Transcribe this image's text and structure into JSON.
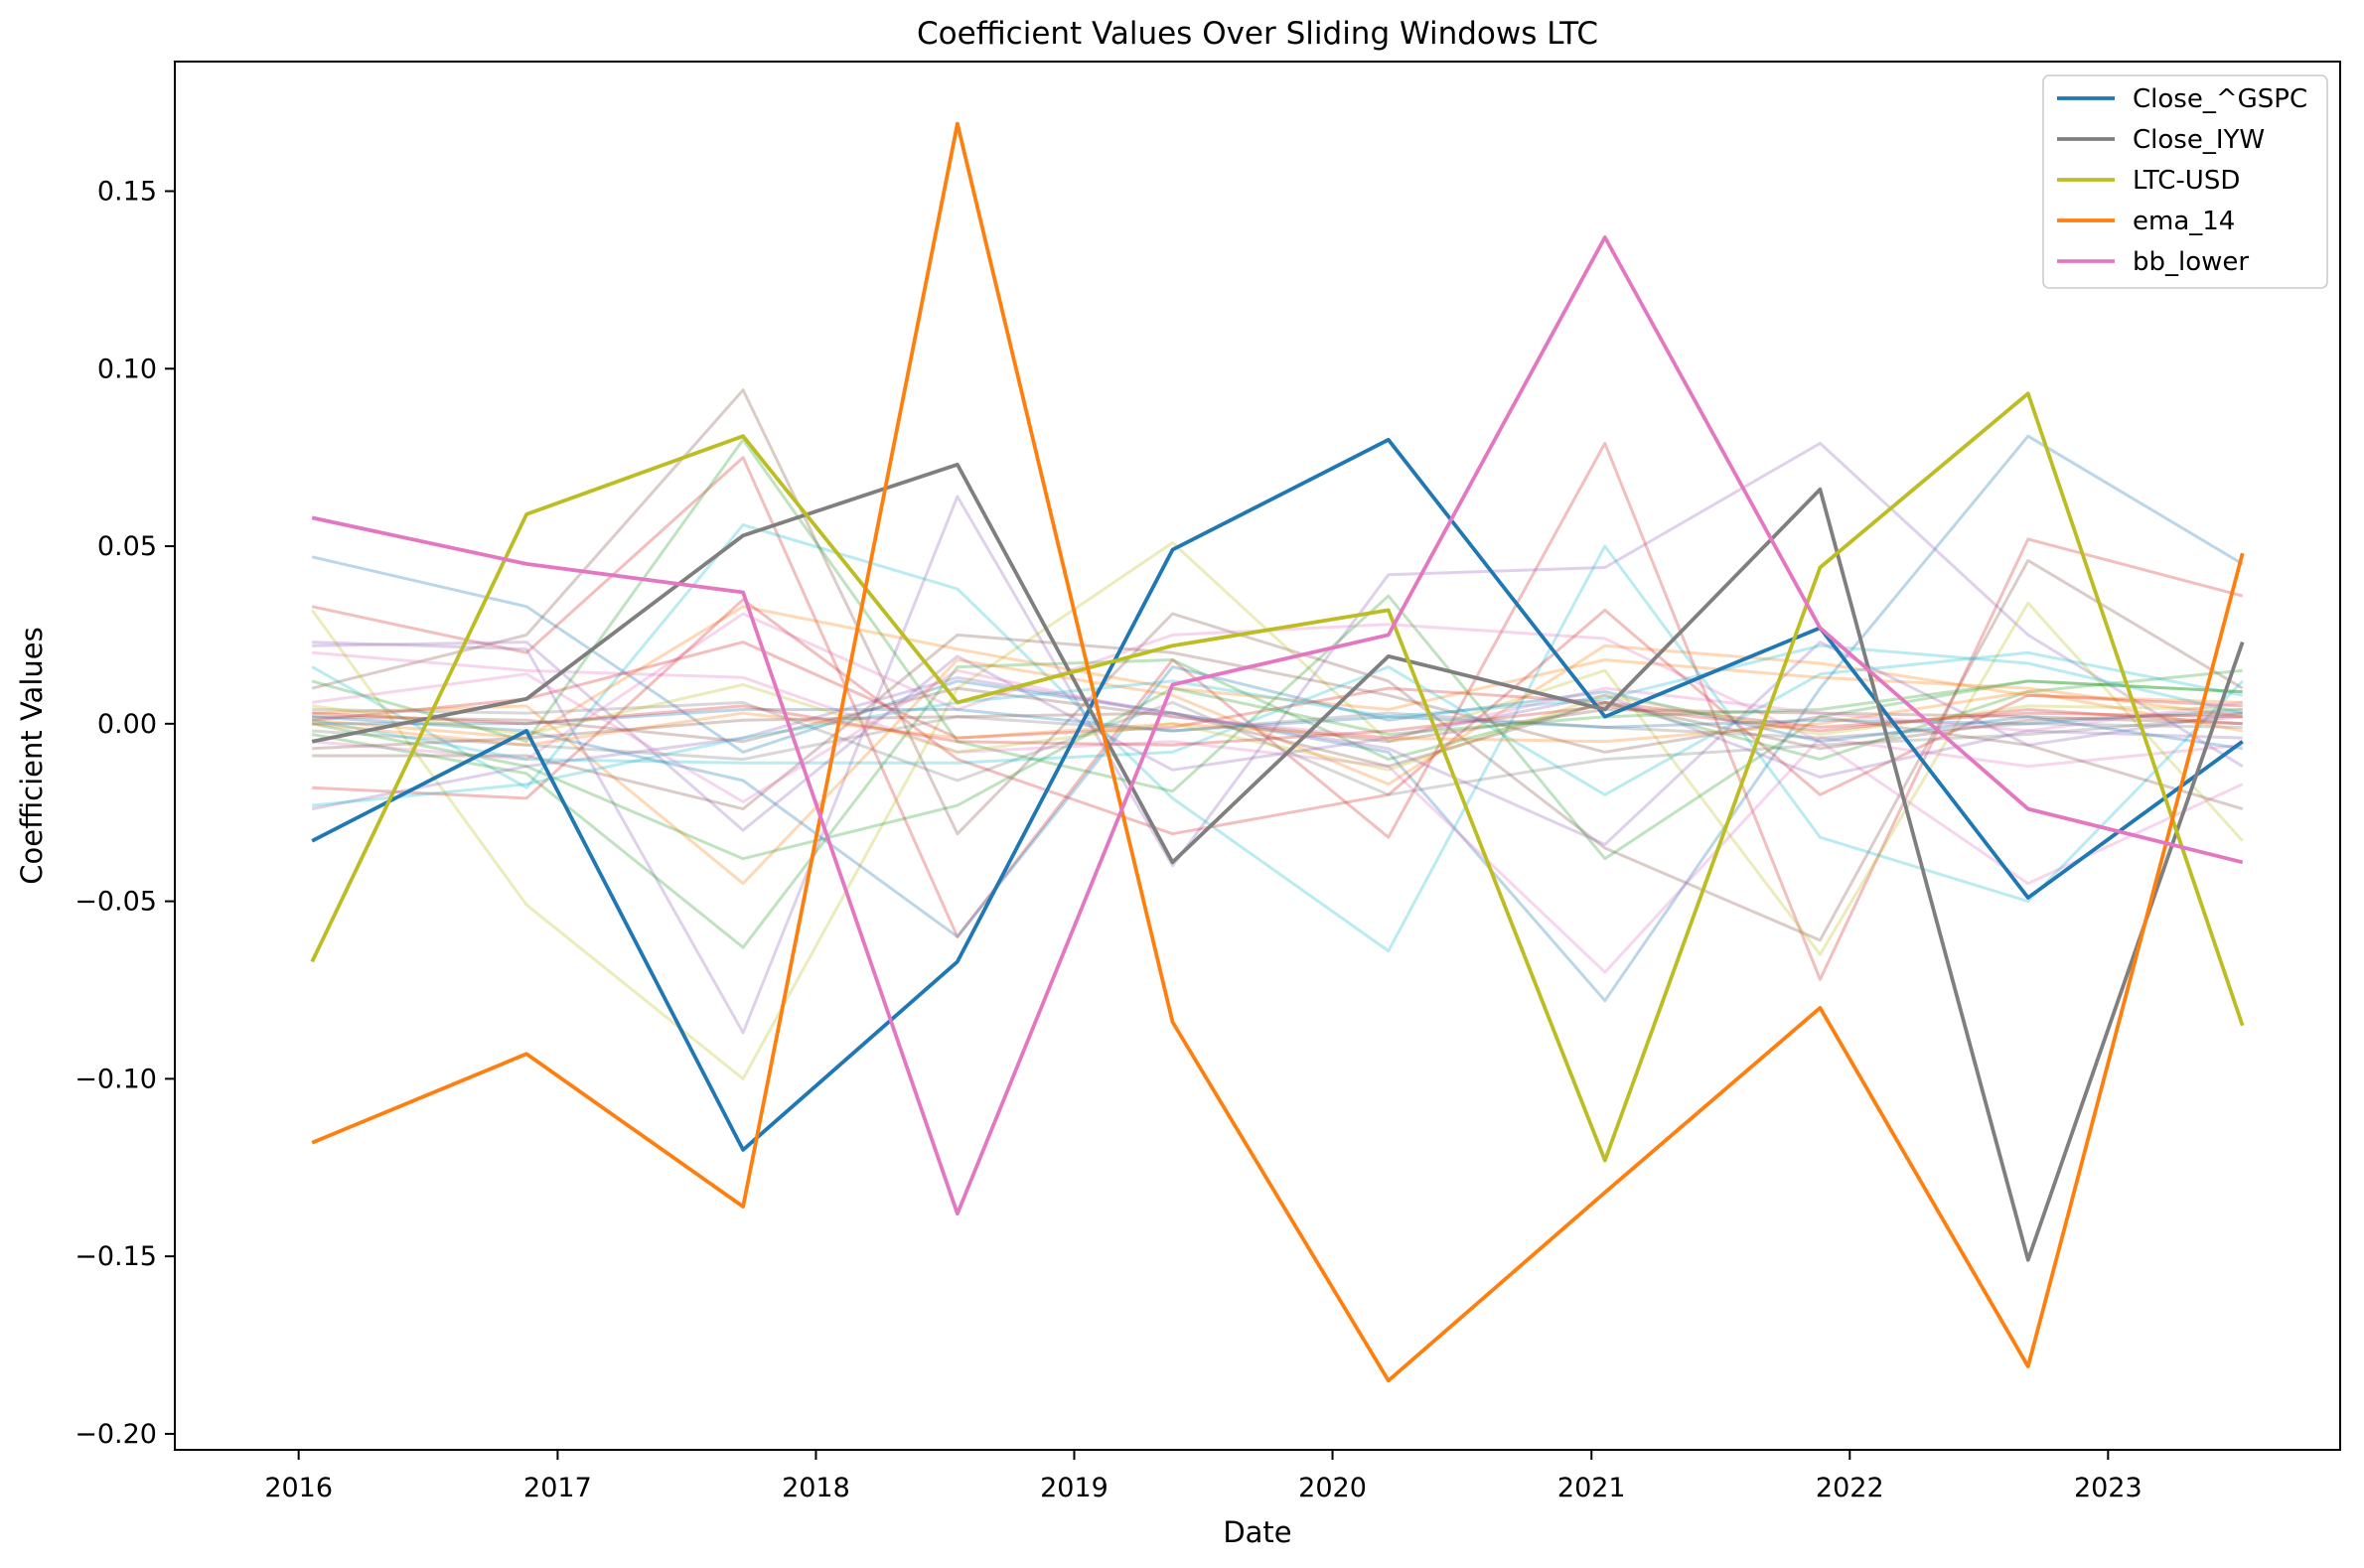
{
  "chart_data": {
    "type": "line",
    "title": "Coefficient Values Over Sliding Windows LTC",
    "xlabel": "Date",
    "ylabel": "Coefficient Values",
    "x": [
      "2016-01-20",
      "2016-11-18",
      "2017-09-20",
      "2018-07-20",
      "2019-05-20",
      "2020-03-20",
      "2021-01-20",
      "2021-11-20",
      "2022-09-10",
      "2023-07-10"
    ],
    "xlim": [
      "2015-07-10",
      "2023-11-25"
    ],
    "ylim": [
      -0.2045,
      0.1865
    ],
    "xticks": [
      {
        "label": "2016",
        "date": "2016-01-01"
      },
      {
        "label": "2017",
        "date": "2017-01-01"
      },
      {
        "label": "2018",
        "date": "2018-01-01"
      },
      {
        "label": "2019",
        "date": "2019-01-01"
      },
      {
        "label": "2020",
        "date": "2020-01-01"
      },
      {
        "label": "2021",
        "date": "2021-01-01"
      },
      {
        "label": "2022",
        "date": "2022-01-01"
      },
      {
        "label": "2023",
        "date": "2023-01-01"
      }
    ],
    "yticks": [
      {
        "label": "0.15",
        "value": 0.15
      },
      {
        "label": "0.10",
        "value": 0.1
      },
      {
        "label": "0.05",
        "value": 0.05
      },
      {
        "label": "0.00",
        "value": 0.0
      },
      {
        "label": "−0.05",
        "value": -0.05
      },
      {
        "label": "−0.10",
        "value": -0.1
      },
      {
        "label": "−0.15",
        "value": -0.15
      },
      {
        "label": "−0.20",
        "value": -0.2
      }
    ],
    "grid": false,
    "legend_position": "top-right",
    "series": [
      {
        "name": "Close_^GSPC",
        "color": "#1f77b4",
        "values": [
          -0.033,
          -0.002,
          -0.12,
          -0.067,
          0.049,
          0.08,
          0.002,
          0.027,
          -0.049,
          -0.005
        ]
      },
      {
        "name": "Close_IYW",
        "color": "#7f7f7f",
        "values": [
          -0.005,
          0.007,
          0.053,
          0.073,
          -0.039,
          0.019,
          0.004,
          0.066,
          -0.151,
          0.023
        ]
      },
      {
        "name": "LTC-USD",
        "color": "#bcbd22",
        "values": [
          -0.067,
          0.059,
          0.081,
          0.006,
          0.022,
          0.032,
          -0.123,
          0.044,
          0.093,
          -0.085
        ]
      },
      {
        "name": "ema_14",
        "color": "#ff7f0e",
        "values": [
          -0.118,
          -0.093,
          -0.136,
          0.169,
          -0.084,
          -0.185,
          -0.132,
          -0.08,
          -0.181,
          0.048
        ]
      },
      {
        "name": "bb_lower",
        "color": "#e377c2",
        "values": [
          0.058,
          0.045,
          0.037,
          -0.138,
          0.011,
          0.025,
          0.137,
          0.027,
          -0.024,
          -0.039
        ]
      }
    ],
    "background_series": [
      {
        "color": "#1f77b4",
        "values": [
          0.047,
          0.033,
          -0.008,
          0.012,
          0.003,
          -0.008,
          -0.078,
          0.01,
          0.081,
          0.045
        ]
      },
      {
        "color": "#d62728",
        "values": [
          0.033,
          0.02,
          0.075,
          -0.06,
          0.018,
          -0.032,
          0.079,
          -0.072,
          0.052,
          0.036
        ]
      },
      {
        "color": "#9467bd",
        "values": [
          0.023,
          0.021,
          -0.087,
          0.064,
          -0.04,
          0.042,
          0.044,
          0.079,
          0.025,
          -0.012
        ]
      },
      {
        "color": "#8c564b",
        "values": [
          0.01,
          0.025,
          0.094,
          -0.031,
          0.031,
          0.012,
          -0.035,
          -0.061,
          0.046,
          0.01
        ]
      },
      {
        "color": "#bcbd22",
        "values": [
          0.032,
          -0.051,
          -0.1,
          0.01,
          0.051,
          -0.005,
          0.015,
          -0.065,
          0.034,
          -0.033
        ]
      },
      {
        "color": "#17becf",
        "values": [
          0.016,
          -0.018,
          0.056,
          0.038,
          -0.021,
          -0.064,
          0.05,
          -0.032,
          -0.05,
          0.012
        ]
      },
      {
        "color": "#2ca02c",
        "values": [
          0.012,
          -0.005,
          0.08,
          -0.005,
          -0.019,
          0.036,
          -0.038,
          0.002,
          0.012,
          0.009
        ]
      },
      {
        "color": "#2ca02c",
        "values": [
          -0.003,
          -0.014,
          -0.063,
          0.016,
          0.018,
          -0.01,
          0.006,
          -0.01,
          0.009,
          0.015
        ]
      },
      {
        "color": "#ff7f0e",
        "values": [
          0.003,
          0.005,
          -0.045,
          0.018,
          0.008,
          -0.017,
          0.022,
          0.017,
          0.008,
          0.006
        ]
      },
      {
        "color": "#ff7f0e",
        "values": [
          0.001,
          -0.004,
          0.033,
          0.021,
          0.01,
          0.004,
          0.018,
          0.013,
          0.01,
          0.002
        ]
      },
      {
        "color": "#e377c2",
        "values": [
          0.02,
          0.015,
          0.013,
          -0.008,
          -0.005,
          -0.012,
          -0.07,
          -0.004,
          -0.012,
          -0.006
        ]
      },
      {
        "color": "#e377c2",
        "values": [
          -0.005,
          -0.01,
          0.031,
          0.004,
          0.025,
          0.028,
          0.024,
          -0.005,
          -0.045,
          -0.017
        ]
      },
      {
        "color": "#d62728",
        "values": [
          -0.018,
          -0.021,
          0.035,
          -0.01,
          -0.031,
          -0.02,
          0.032,
          -0.02,
          0.008,
          0.005
        ]
      },
      {
        "color": "#d62728",
        "values": [
          0.001,
          0.007,
          0.023,
          -0.004,
          -0.001,
          0.01,
          0.006,
          -0.001,
          0.003,
          0.002
        ]
      },
      {
        "color": "#9467bd",
        "values": [
          0.022,
          0.023,
          -0.03,
          0.019,
          -0.013,
          -0.004,
          0.008,
          -0.015,
          -0.002,
          -0.004
        ]
      },
      {
        "color": "#9467bd",
        "values": [
          -0.024,
          -0.012,
          -0.004,
          0.013,
          0.003,
          -0.007,
          -0.034,
          0.023,
          -0.006,
          0.003
        ]
      },
      {
        "color": "#8c564b",
        "values": [
          -0.009,
          -0.009,
          -0.024,
          0.025,
          0.02,
          0.008,
          -0.008,
          0.002,
          -0.006,
          -0.024
        ]
      },
      {
        "color": "#8c564b",
        "values": [
          0.002,
          0.001,
          -0.005,
          0.01,
          0.002,
          -0.005,
          0.004,
          0.003,
          0.002,
          0.0
        ]
      },
      {
        "color": "#7f7f7f",
        "values": [
          0.004,
          0.003,
          0.006,
          -0.016,
          0.006,
          -0.02,
          -0.01,
          -0.006,
          -0.003,
          0.002
        ]
      },
      {
        "color": "#7f7f7f",
        "values": [
          -0.002,
          -0.006,
          -0.01,
          0.002,
          -0.002,
          0.003,
          -0.001,
          -0.004,
          0.0,
          -0.001
        ]
      },
      {
        "color": "#17becf",
        "values": [
          0.001,
          -0.01,
          -0.011,
          -0.011,
          -0.008,
          0.016,
          -0.02,
          0.014,
          0.02,
          0.008
        ]
      },
      {
        "color": "#17becf",
        "values": [
          -0.023,
          -0.017,
          -0.004,
          0.006,
          0.012,
          0.002,
          0.007,
          0.022,
          0.017,
          0.003
        ]
      },
      {
        "color": "#1f77b4",
        "values": [
          0.002,
          -0.002,
          -0.016,
          -0.06,
          0.016,
          0.001,
          0.009,
          -0.005,
          0.002,
          -0.007
        ]
      },
      {
        "color": "#1f77b4",
        "values": [
          0.0,
          0.0,
          0.004,
          0.004,
          -0.002,
          0.002,
          -0.001,
          0.001,
          0.0,
          0.004
        ]
      },
      {
        "color": "#bcbd22",
        "values": [
          0.005,
          -0.003,
          0.011,
          -0.008,
          0.0,
          -0.013,
          0.008,
          -0.003,
          0.005,
          0.004
        ]
      },
      {
        "color": "#2ca02c",
        "values": [
          0.0,
          -0.012,
          -0.038,
          -0.023,
          0.01,
          -0.003,
          0.002,
          0.004,
          0.012,
          0.009
        ]
      },
      {
        "color": "#ff7f0e",
        "values": [
          0.0,
          -0.006,
          0.003,
          -0.004,
          0.0,
          -0.004,
          -0.005,
          0.0,
          0.009,
          -0.002
        ]
      },
      {
        "color": "#d62728",
        "values": [
          0.003,
          0.0,
          0.005,
          -0.005,
          -0.006,
          -0.002,
          0.005,
          -0.002,
          0.004,
          0.0
        ]
      },
      {
        "color": "#e377c2",
        "values": [
          0.006,
          0.014,
          -0.022,
          0.015,
          0.002,
          -0.004,
          0.01,
          0.003,
          -0.002,
          0.006
        ]
      },
      {
        "color": "#8c564b",
        "values": [
          -0.007,
          -0.004,
          0.001,
          0.002,
          0.003,
          -0.012,
          0.006,
          -0.007,
          0.001,
          0.003
        ]
      }
    ]
  }
}
